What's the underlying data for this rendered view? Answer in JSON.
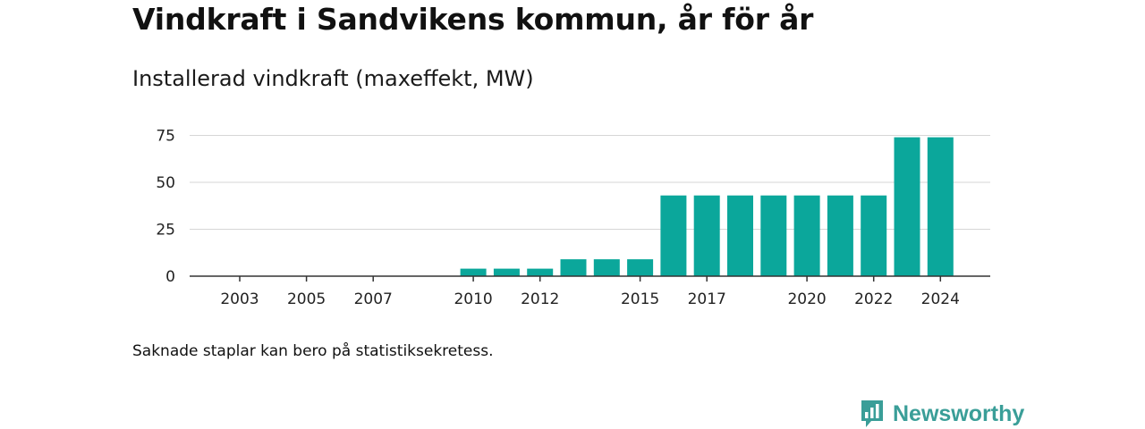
{
  "header": {
    "title": "Vindkraft i Sandvikens kommun, år för år",
    "subtitle": "Installerad vindkraft (maxeffekt, MW)"
  },
  "footer": {
    "note": "Saknade staplar kan bero på statistiksekretess.",
    "brand": "Newsworthy"
  },
  "colors": {
    "bar": "#0ba79b",
    "brand": "#3a9e98"
  },
  "chart_data": {
    "type": "bar",
    "title": "Vindkraft i Sandvikens kommun, år för år",
    "subtitle": "Installerad vindkraft (maxeffekt, MW)",
    "xlabel": "",
    "ylabel": "",
    "categories": [
      2003,
      2004,
      2005,
      2006,
      2007,
      2008,
      2009,
      2010,
      2011,
      2012,
      2013,
      2014,
      2015,
      2016,
      2017,
      2018,
      2019,
      2020,
      2021,
      2022,
      2023,
      2024
    ],
    "values": [
      null,
      null,
      null,
      null,
      null,
      null,
      null,
      4,
      4,
      4,
      9,
      9,
      9,
      43,
      43,
      43,
      43,
      43,
      43,
      43,
      74,
      74
    ],
    "x_tick_labels": [
      "2003",
      "2005",
      "2007",
      "2010",
      "2012",
      "2015",
      "2017",
      "2020",
      "2022",
      "2024"
    ],
    "y_ticks": [
      0,
      25,
      50,
      75
    ],
    "ylim": [
      0,
      80
    ],
    "grid": "horizontal",
    "legend": "none"
  }
}
